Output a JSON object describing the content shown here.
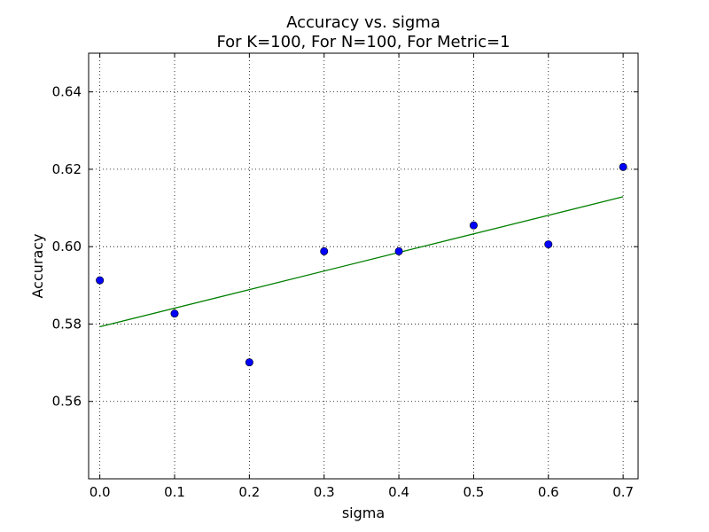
{
  "chart_data": {
    "type": "scatter",
    "title": "Accuracy vs. sigma",
    "subtitle": "For K=100, For N=100, For Metric=1",
    "xlabel": "sigma",
    "ylabel": "Accuracy",
    "xlim": [
      -0.015,
      0.72
    ],
    "ylim": [
      0.54,
      0.65
    ],
    "xticks": [
      0.0,
      0.1,
      0.2,
      0.3,
      0.4,
      0.5,
      0.6,
      0.7
    ],
    "xtick_labels": [
      "0.0",
      "0.1",
      "0.2",
      "0.3",
      "0.4",
      "0.5",
      "0.6",
      "0.7"
    ],
    "yticks": [
      0.56,
      0.58,
      0.6,
      0.62,
      0.64
    ],
    "ytick_labels": [
      "0.56",
      "0.58",
      "0.60",
      "0.62",
      "0.64"
    ],
    "grid": true,
    "series": [
      {
        "kind": "points",
        "color": "#0000ff",
        "x": [
          0.0,
          0.1,
          0.2,
          0.3,
          0.4,
          0.5,
          0.6,
          0.7
        ],
        "y": [
          0.5913,
          0.5827,
          0.5701,
          0.5988,
          0.5988,
          0.6055,
          0.6006,
          0.6206
        ]
      },
      {
        "kind": "fit-line",
        "color": "#008000",
        "x": [
          0.0,
          0.7
        ],
        "y": [
          0.5793,
          0.6129
        ]
      }
    ]
  }
}
